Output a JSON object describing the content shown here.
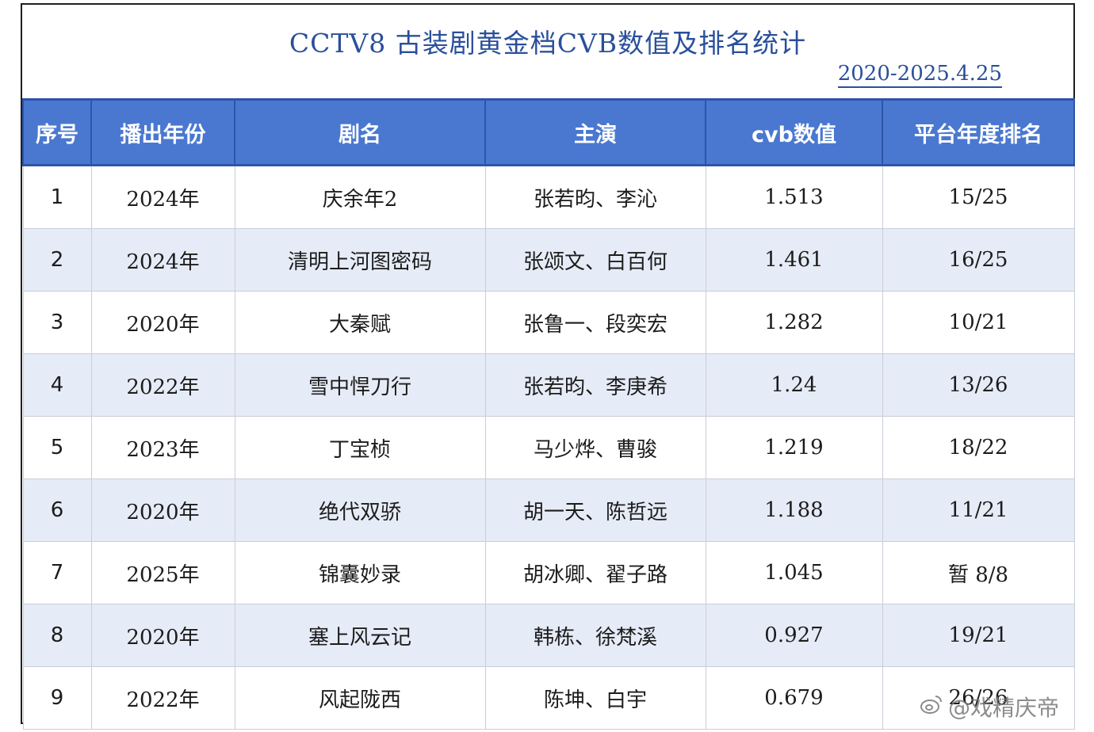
{
  "title": "CCTV8  古装剧黄金档CVB数值及排名统计",
  "date_range": "2020-2025.4.25",
  "table": {
    "headers": [
      "序号",
      "播出年份",
      "剧名",
      "主演",
      "cvb数值",
      "平台年度排名"
    ],
    "rows": [
      [
        "1",
        "2024年",
        "庆余年2",
        "张若昀、李沁",
        "1.513",
        "15/25"
      ],
      [
        "2",
        "2024年",
        "清明上河图密码",
        "张颂文、白百何",
        "1.461",
        "16/25"
      ],
      [
        "3",
        "2020年",
        "大秦赋",
        "张鲁一、段奕宏",
        "1.282",
        "10/21"
      ],
      [
        "4",
        "2022年",
        "雪中悍刀行",
        "张若昀、李庚希",
        "1.24",
        "13/26"
      ],
      [
        "5",
        "2023年",
        "丁宝桢",
        "马少烨、曹骏",
        "1.219",
        "18/22"
      ],
      [
        "6",
        "2020年",
        "绝代双骄",
        "胡一天、陈哲远",
        "1.188",
        "11/21"
      ],
      [
        "7",
        "2025年",
        "锦囊妙录",
        "胡冰卿、翟子路",
        "1.045",
        "暂 8/8"
      ],
      [
        "8",
        "2020年",
        "塞上风云记",
        "韩栋、徐梵溪",
        "0.927",
        "19/21"
      ],
      [
        "9",
        "2022年",
        "风起陇西",
        "陈坤、白宇",
        "0.679",
        "26/26"
      ]
    ]
  },
  "watermark": "@戏精庆帝",
  "colors": {
    "header_bg": "#4a78d0",
    "title": "#2a4f9a",
    "alt_row": "#e6ecf7"
  }
}
